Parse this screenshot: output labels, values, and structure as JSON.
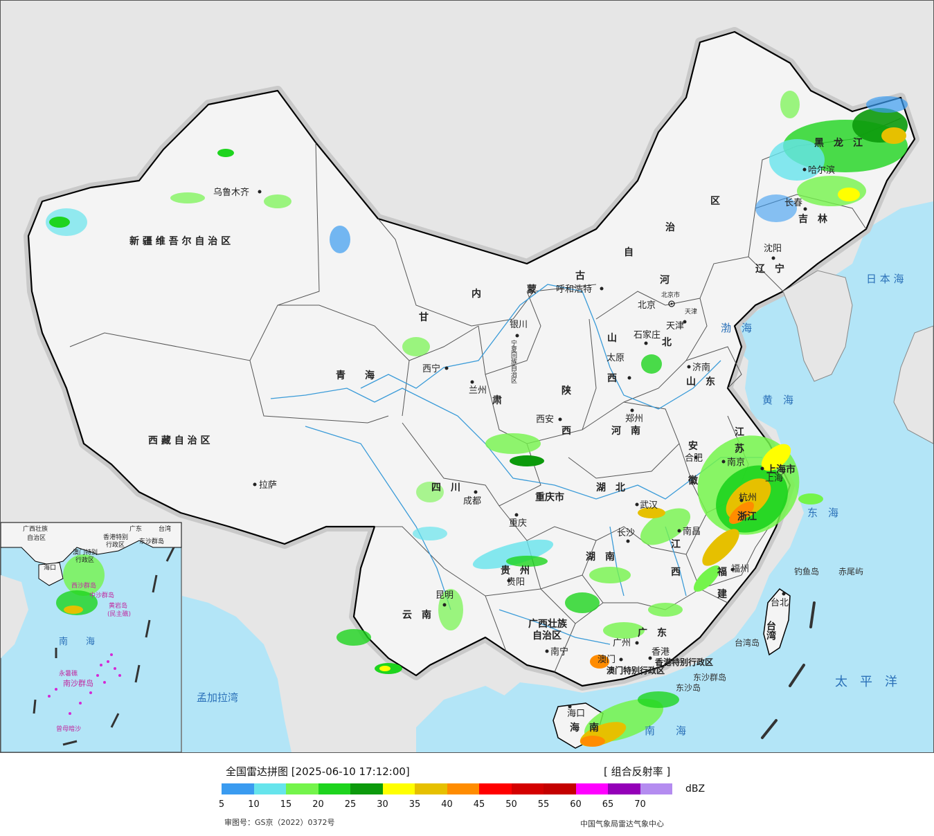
{
  "legend": {
    "title": "全国雷达拼图 [2025-06-10 17:12:00]",
    "product": "[ 组合反射率 ]",
    "unit": "dBZ",
    "colors": [
      "#3a9bf0",
      "#66e4ec",
      "#74f44b",
      "#1ed41e",
      "#0c9a0c",
      "#ffff00",
      "#e6c000",
      "#ff8c00",
      "#ff0000",
      "#d40000",
      "#c40000",
      "#ff00ff",
      "#9400b8",
      "#b48cf0"
    ],
    "ticks": [
      "5",
      "10",
      "15",
      "20",
      "25",
      "30",
      "35",
      "40",
      "45",
      "50",
      "55",
      "60",
      "65",
      "70"
    ],
    "approval": "审图号：GS京（2022）0372号",
    "source": "中国气象局雷达气象中心"
  },
  "map": {
    "colors": {
      "land": "#f4f4f4",
      "outside": "#e6e6e6",
      "sea": "#b3e5f7",
      "border": "#000000",
      "province": "#555555",
      "river": "#3a9bd8"
    },
    "regions": [
      {
        "id": "xinjiang",
        "text": "新 疆 维 吾 尔 自 治 区"
      },
      {
        "id": "xizang",
        "text": "西 藏 自 治 区"
      },
      {
        "id": "qinghai",
        "text": "青　　海"
      },
      {
        "id": "neimenggu-nei",
        "text": "内"
      },
      {
        "id": "neimenggu-meng",
        "text": "蒙"
      },
      {
        "id": "neimenggu-gu",
        "text": "古"
      },
      {
        "id": "neimenggu-zi",
        "text": "自"
      },
      {
        "id": "neimenggu-zhi",
        "text": "治"
      },
      {
        "id": "neimenggu-qu",
        "text": "区"
      },
      {
        "id": "heilongjiang",
        "text": "黑　龙　江"
      },
      {
        "id": "jilin",
        "text": "吉　林"
      },
      {
        "id": "liaoning",
        "text": "辽　宁"
      },
      {
        "id": "hebei-he",
        "text": "河"
      },
      {
        "id": "hebei-bei",
        "text": "北"
      },
      {
        "id": "shanxi-shan",
        "text": "山"
      },
      {
        "id": "shanxi-xi",
        "text": "西"
      },
      {
        "id": "shandong",
        "text": "山　东"
      },
      {
        "id": "henan",
        "text": "河　南"
      },
      {
        "id": "shaanxi-shan",
        "text": "陕"
      },
      {
        "id": "shaanxi-xi",
        "text": "西"
      },
      {
        "id": "gansu-gan",
        "text": "甘"
      },
      {
        "id": "gansu-su",
        "text": "肃"
      },
      {
        "id": "sichuan",
        "text": "四　川"
      },
      {
        "id": "chongqing",
        "text": "重庆市"
      },
      {
        "id": "hubei",
        "text": "湖　北"
      },
      {
        "id": "hunan",
        "text": "湖　南"
      },
      {
        "id": "guizhou",
        "text": "贵　州"
      },
      {
        "id": "yunnan",
        "text": "云　南"
      },
      {
        "id": "guangxi1",
        "text": "广西壮族"
      },
      {
        "id": "guangxi2",
        "text": "自治区"
      },
      {
        "id": "guangdong",
        "text": "广　东"
      },
      {
        "id": "jiangxi-jiang",
        "text": "江"
      },
      {
        "id": "jiangxi-xi",
        "text": "西"
      },
      {
        "id": "fujian-fu",
        "text": "福"
      },
      {
        "id": "fujian-jian",
        "text": "建"
      },
      {
        "id": "zhejiang",
        "text": "浙江"
      },
      {
        "id": "anhui-an",
        "text": "安"
      },
      {
        "id": "anhui-hui",
        "text": "徽"
      },
      {
        "id": "jiangsu-jiang",
        "text": "江"
      },
      {
        "id": "jiangsu-su",
        "text": "苏"
      },
      {
        "id": "shanghai",
        "text": "上海市"
      },
      {
        "id": "taiwan",
        "text": "台湾"
      },
      {
        "id": "hainan",
        "text": "海　南"
      },
      {
        "id": "hk",
        "text": "香港特别行政区"
      },
      {
        "id": "macau",
        "text": "澳门特别行政区"
      },
      {
        "id": "beijing",
        "text": "北京"
      },
      {
        "id": "tianjin",
        "text": "天津"
      },
      {
        "id": "ningxia",
        "text": "宁夏回族自治区"
      }
    ],
    "cities": [
      {
        "id": "urumqi",
        "text": "乌鲁木齐"
      },
      {
        "id": "lhasa",
        "text": "拉萨"
      },
      {
        "id": "xining",
        "text": "西宁"
      },
      {
        "id": "lanzhou",
        "text": "兰州"
      },
      {
        "id": "yinchuan",
        "text": "银川"
      },
      {
        "id": "hohhot",
        "text": "呼和浩特"
      },
      {
        "id": "harbin",
        "text": "哈尔滨"
      },
      {
        "id": "changchun",
        "text": "长春"
      },
      {
        "id": "shenyang",
        "text": "沈阳"
      },
      {
        "id": "beijing-city",
        "text": "北京市"
      },
      {
        "id": "tianjin-city",
        "text": "天津"
      },
      {
        "id": "shijiazhuang",
        "text": "石家庄"
      },
      {
        "id": "taiyuan",
        "text": "太原"
      },
      {
        "id": "jinan",
        "text": "济南"
      },
      {
        "id": "zhengzhou",
        "text": "郑州"
      },
      {
        "id": "xian",
        "text": "西安"
      },
      {
        "id": "chengdu",
        "text": "成都"
      },
      {
        "id": "chongqing-city",
        "text": "重庆"
      },
      {
        "id": "wuhan",
        "text": "武汉"
      },
      {
        "id": "hefei",
        "text": "合肥"
      },
      {
        "id": "nanjing",
        "text": "南京"
      },
      {
        "id": "shanghai-city",
        "text": "上海"
      },
      {
        "id": "hangzhou",
        "text": "杭州"
      },
      {
        "id": "changsha",
        "text": "长沙"
      },
      {
        "id": "nanchang",
        "text": "南昌"
      },
      {
        "id": "fuzhou",
        "text": "福州"
      },
      {
        "id": "guiyang",
        "text": "贵阳"
      },
      {
        "id": "kunming",
        "text": "昆明"
      },
      {
        "id": "nanning",
        "text": "南宁"
      },
      {
        "id": "guangzhou",
        "text": "广州"
      },
      {
        "id": "macau-city",
        "text": "澳门"
      },
      {
        "id": "hongkong-city",
        "text": "香港"
      },
      {
        "id": "haikou",
        "text": "海口"
      },
      {
        "id": "taipei",
        "text": "台北"
      }
    ],
    "seas": [
      {
        "id": "bohai",
        "text": "渤　海"
      },
      {
        "id": "huanghai",
        "text": "黄　海"
      },
      {
        "id": "donghai",
        "text": "东　海"
      },
      {
        "id": "nanhai",
        "text": "南　　海"
      },
      {
        "id": "ribenhai",
        "text": "日 本 海"
      },
      {
        "id": "taipingyang",
        "text": "太　平　洋"
      },
      {
        "id": "mengjialawan",
        "text": "孟加拉湾"
      }
    ],
    "islands": [
      {
        "id": "diaoyudao",
        "text": "钓鱼岛"
      },
      {
        "id": "chiweiyu",
        "text": "赤尾屿"
      },
      {
        "id": "taiwandao",
        "text": "台湾岛"
      },
      {
        "id": "dongshaqundao",
        "text": "东沙群岛"
      },
      {
        "id": "dongsha",
        "text": "东沙岛"
      }
    ],
    "inset": {
      "labels": [
        {
          "id": "inset-guangxi",
          "text": "广西壮族"
        },
        {
          "id": "inset-guangxi2",
          "text": "自治区"
        },
        {
          "id": "inset-guangdong",
          "text": "广东"
        },
        {
          "id": "inset-taiwan",
          "text": "台湾"
        },
        {
          "id": "inset-hk",
          "text": "香港特别"
        },
        {
          "id": "inset-hk2",
          "text": "行政区"
        },
        {
          "id": "inset-macau",
          "text": "澳门特别"
        },
        {
          "id": "inset-macau2",
          "text": "行政区"
        },
        {
          "id": "inset-dongsha",
          "text": "东沙群岛"
        },
        {
          "id": "inset-haikou",
          "text": "海口"
        },
        {
          "id": "inset-xisha",
          "text": "西沙群岛"
        },
        {
          "id": "inset-zhongsha",
          "text": "中沙群岛"
        },
        {
          "id": "inset-huangyan",
          "text": "黄岩岛"
        },
        {
          "id": "inset-huangyan2",
          "text": "(民主礁)"
        },
        {
          "id": "inset-nanhai",
          "text": "南　　海"
        },
        {
          "id": "inset-yongshu",
          "text": "永暑礁"
        },
        {
          "id": "inset-nansha",
          "text": "南沙群岛"
        },
        {
          "id": "inset-zengmu",
          "text": "曾母暗沙"
        }
      ]
    }
  }
}
